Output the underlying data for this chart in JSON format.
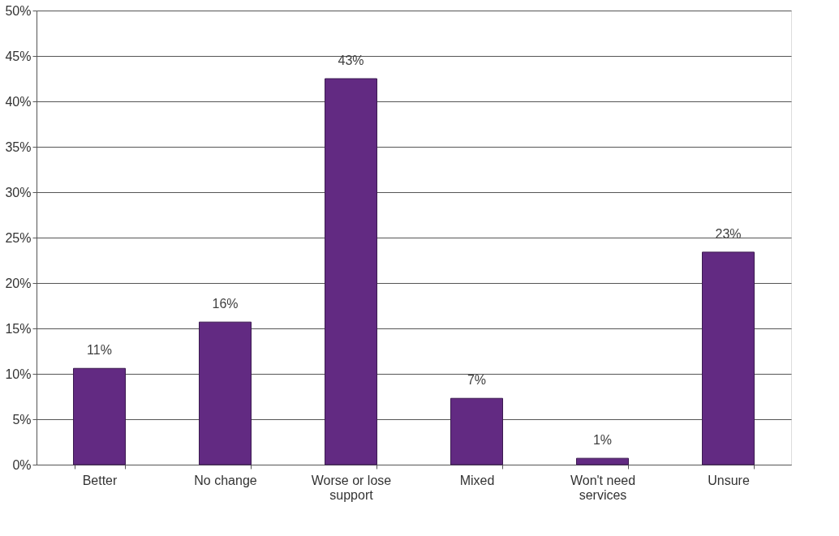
{
  "chart_data": {
    "type": "bar",
    "categories": [
      "Better",
      "No change",
      "Worse or lose support",
      "Mixed",
      "Won't need services",
      "Unsure"
    ],
    "values": [
      10.6,
      15.7,
      42.5,
      7.3,
      0.7,
      23.4
    ],
    "value_labels": [
      "11%",
      "16%",
      "43%",
      "7%",
      "1%",
      "23%"
    ],
    "color": "#622a82",
    "ylim": [
      0,
      50
    ],
    "yticks": [
      {
        "value": 0,
        "label": "0%"
      },
      {
        "value": 5,
        "label": "5%"
      },
      {
        "value": 10,
        "label": "10%"
      },
      {
        "value": 15,
        "label": "15%"
      },
      {
        "value": 20,
        "label": "20%"
      },
      {
        "value": 25,
        "label": "25%"
      },
      {
        "value": 30,
        "label": "30%"
      },
      {
        "value": 35,
        "label": "35%"
      },
      {
        "value": 40,
        "label": "40%"
      },
      {
        "value": 45,
        "label": "45%"
      },
      {
        "value": 50,
        "label": "50%"
      }
    ],
    "grid": "y"
  }
}
